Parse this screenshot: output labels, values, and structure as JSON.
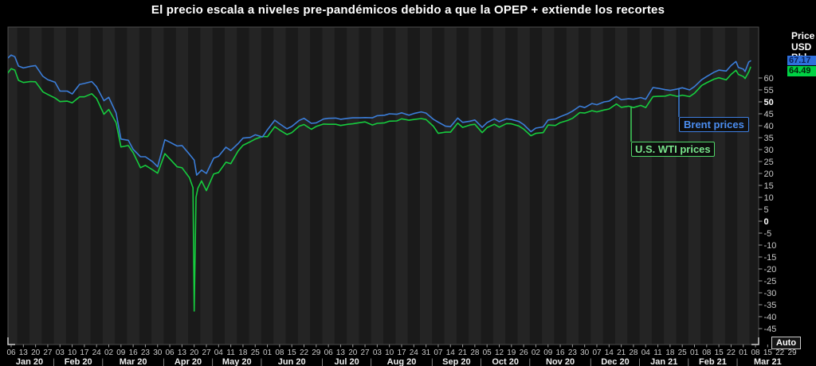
{
  "title": "El precio escala a niveles pre-pandémicos debido a que la OPEP + extiende los recortes",
  "right_column": {
    "unit_lines": [
      "Price",
      "USD",
      "Bbl"
    ],
    "auto_button": "Auto",
    "badges": {
      "brent": {
        "value": "67.17",
        "bg": "#2e6fdc",
        "fg": "#09225c"
      },
      "wti": {
        "value": "64.49",
        "bg": "#00d244",
        "fg": "#02220c"
      }
    }
  },
  "legend": {
    "brent": "Brent prices",
    "wti": "U.S. WTI prices"
  },
  "colors": {
    "background": "#000000",
    "plot_bg": "#1a1a1a",
    "plot_stripe": "#242424",
    "plot_border": "#4d4d4d",
    "corner_handle": "#cfcfcf",
    "tick_mark": "#9a9a9a",
    "tick_text": "#c9c9c9",
    "bold_tick_text": "#ffffff",
    "month_text": "#ededed",
    "brent": "#3b7dd8",
    "wti": "#16cc3e"
  },
  "chart_data": {
    "type": "line",
    "title": "El precio escala a niveles pre-pandémicos debido a que la OPEP + extiende los recortes",
    "ylabel": "Price USD/Bbl",
    "x_unit": "weeks since Mon 2020-01-06 (weekday daily closes)",
    "ylim": [
      -51,
      81
    ],
    "y_ticks": [
      60,
      55,
      50,
      45,
      40,
      35,
      30,
      25,
      20,
      15,
      10,
      5,
      0,
      -5,
      -10,
      -15,
      -20,
      -25,
      -30,
      -35,
      -40,
      -45
    ],
    "y_tick_step": 5,
    "y_ticks_bold": [
      50,
      0
    ],
    "grid": "alternating vertical weekly bands, no gridlines",
    "legend_position": "callout boxes inside plot, right side",
    "months": [
      {
        "label": "Jan 20",
        "days": [
          "06",
          "13",
          "20",
          "27"
        ]
      },
      {
        "label": "Feb 20",
        "days": [
          "03",
          "10",
          "17",
          "24"
        ]
      },
      {
        "label": "Mar 20",
        "days": [
          "02",
          "09",
          "16",
          "23",
          "30"
        ]
      },
      {
        "label": "Apr 20",
        "days": [
          "06",
          "13",
          "20",
          "27"
        ]
      },
      {
        "label": "May 20",
        "days": [
          "04",
          "11",
          "18",
          "25"
        ]
      },
      {
        "label": "Jun 20",
        "days": [
          "01",
          "08",
          "15",
          "22",
          "29"
        ]
      },
      {
        "label": "Jul 20",
        "days": [
          "06",
          "13",
          "20",
          "27"
        ]
      },
      {
        "label": "Aug 20",
        "days": [
          "03",
          "10",
          "17",
          "24",
          "31"
        ]
      },
      {
        "label": "Sep 20",
        "days": [
          "07",
          "14",
          "21",
          "28"
        ]
      },
      {
        "label": "Oct 20",
        "days": [
          "05",
          "12",
          "19",
          "26"
        ]
      },
      {
        "label": "Nov 20",
        "days": [
          "02",
          "09",
          "16",
          "23",
          "30"
        ]
      },
      {
        "label": "Dec 20",
        "days": [
          "07",
          "14",
          "21",
          "28"
        ]
      },
      {
        "label": "Jan 21",
        "days": [
          "04",
          "11",
          "18",
          "25"
        ]
      },
      {
        "label": "Feb 21",
        "days": [
          "01",
          "08",
          "15",
          "22"
        ]
      },
      {
        "label": "Mar 21",
        "days": [
          "01",
          "08",
          "15",
          "22",
          "29"
        ]
      }
    ],
    "series": [
      {
        "name": "Brent prices",
        "color": "#3b7dd8",
        "last_price": 67.17,
        "points": [
          [
            -0.3,
            68.2
          ],
          [
            0,
            69.6
          ],
          [
            0.3,
            68.9
          ],
          [
            0.6,
            65.0
          ],
          [
            1,
            64.2
          ],
          [
            1.6,
            64.9
          ],
          [
            2,
            65.2
          ],
          [
            2.6,
            60.7
          ],
          [
            3,
            59.3
          ],
          [
            3.6,
            58.2
          ],
          [
            4,
            54.5
          ],
          [
            4.6,
            54.5
          ],
          [
            5,
            53.3
          ],
          [
            5.6,
            57.3
          ],
          [
            6,
            57.7
          ],
          [
            6.6,
            58.5
          ],
          [
            7,
            56.3
          ],
          [
            7.6,
            50.5
          ],
          [
            8,
            51.9
          ],
          [
            8.6,
            45.3
          ],
          [
            9,
            34.4
          ],
          [
            9.6,
            33.9
          ],
          [
            10,
            30.1
          ],
          [
            10.6,
            27.0
          ],
          [
            11,
            27.0
          ],
          [
            11.6,
            24.9
          ],
          [
            12,
            22.8
          ],
          [
            12.6,
            34.1
          ],
          [
            13,
            33.1
          ],
          [
            13.6,
            31.5
          ],
          [
            14,
            31.7
          ],
          [
            14.6,
            28.1
          ],
          [
            15,
            25.6
          ],
          [
            15.2,
            19.3
          ],
          [
            15.6,
            21.4
          ],
          [
            16,
            20.0
          ],
          [
            16.6,
            26.4
          ],
          [
            17,
            27.2
          ],
          [
            17.6,
            31.0
          ],
          [
            18,
            29.6
          ],
          [
            18.6,
            32.5
          ],
          [
            19,
            34.8
          ],
          [
            19.6,
            35.1
          ],
          [
            20,
            36.2
          ],
          [
            20.6,
            35.3
          ],
          [
            21,
            38.3
          ],
          [
            21.6,
            42.3
          ],
          [
            22,
            40.8
          ],
          [
            22.6,
            38.7
          ],
          [
            23,
            39.7
          ],
          [
            23.6,
            42.2
          ],
          [
            24,
            43.1
          ],
          [
            24.6,
            41.0
          ],
          [
            25,
            41.2
          ],
          [
            25.6,
            42.8
          ],
          [
            26,
            43.1
          ],
          [
            26.6,
            43.2
          ],
          [
            27,
            42.7
          ],
          [
            27.6,
            43.1
          ],
          [
            28,
            43.3
          ],
          [
            28.6,
            43.3
          ],
          [
            29,
            43.4
          ],
          [
            29.6,
            43.3
          ],
          [
            30,
            44.2
          ],
          [
            30.6,
            44.4
          ],
          [
            31,
            45.0
          ],
          [
            31.6,
            44.8
          ],
          [
            32,
            45.4
          ],
          [
            32.6,
            44.4
          ],
          [
            33,
            45.1
          ],
          [
            33.6,
            45.8
          ],
          [
            34,
            45.3
          ],
          [
            34.6,
            42.7
          ],
          [
            35,
            41.5
          ],
          [
            35.6,
            39.8
          ],
          [
            36,
            39.6
          ],
          [
            36.6,
            43.2
          ],
          [
            37,
            41.4
          ],
          [
            37.6,
            41.9
          ],
          [
            38,
            42.4
          ],
          [
            38.6,
            39.3
          ],
          [
            39,
            41.3
          ],
          [
            39.6,
            42.9
          ],
          [
            40,
            41.7
          ],
          [
            40.6,
            42.9
          ],
          [
            41,
            42.6
          ],
          [
            41.6,
            41.8
          ],
          [
            42,
            40.5
          ],
          [
            42.6,
            37.5
          ],
          [
            43,
            39.0
          ],
          [
            43.6,
            39.5
          ],
          [
            44,
            42.4
          ],
          [
            44.6,
            42.8
          ],
          [
            45,
            43.8
          ],
          [
            45.6,
            45.0
          ],
          [
            46,
            46.1
          ],
          [
            46.6,
            48.2
          ],
          [
            47,
            47.6
          ],
          [
            47.6,
            49.3
          ],
          [
            48,
            48.8
          ],
          [
            48.6,
            50.0
          ],
          [
            49,
            50.3
          ],
          [
            49.6,
            52.3
          ],
          [
            50,
            50.9
          ],
          [
            50.6,
            51.3
          ],
          [
            51,
            51.1
          ],
          [
            51.6,
            51.8
          ],
          [
            52,
            51.1
          ],
          [
            52.6,
            56.0
          ],
          [
            53,
            55.7
          ],
          [
            53.6,
            55.1
          ],
          [
            54,
            54.8
          ],
          [
            54.6,
            55.4
          ],
          [
            55,
            55.9
          ],
          [
            55.6,
            55.0
          ],
          [
            56,
            56.4
          ],
          [
            56.6,
            59.3
          ],
          [
            57,
            60.6
          ],
          [
            57.6,
            62.4
          ],
          [
            58,
            63.3
          ],
          [
            58.6,
            62.9
          ],
          [
            59,
            65.2
          ],
          [
            59.4,
            66.9
          ],
          [
            59.6,
            64.4
          ],
          [
            60,
            63.7
          ],
          [
            60.15,
            62.7
          ],
          [
            60.45,
            66.7
          ],
          [
            60.6,
            67.17
          ]
        ]
      },
      {
        "name": "U.S. WTI prices",
        "color": "#16cc3e",
        "last_price": 64.49,
        "points": [
          [
            -0.3,
            61.9
          ],
          [
            0,
            63.9
          ],
          [
            0.3,
            63.3
          ],
          [
            0.6,
            59.0
          ],
          [
            1,
            58.1
          ],
          [
            1.6,
            58.5
          ],
          [
            2,
            58.4
          ],
          [
            2.6,
            54.2
          ],
          [
            3,
            53.1
          ],
          [
            3.6,
            51.6
          ],
          [
            4,
            50.1
          ],
          [
            4.6,
            50.3
          ],
          [
            5,
            49.6
          ],
          [
            5.6,
            52.1
          ],
          [
            6,
            52.1
          ],
          [
            6.6,
            53.4
          ],
          [
            7,
            51.4
          ],
          [
            7.6,
            44.8
          ],
          [
            8,
            46.8
          ],
          [
            8.6,
            41.3
          ],
          [
            9,
            31.1
          ],
          [
            9.6,
            31.7
          ],
          [
            10,
            28.7
          ],
          [
            10.6,
            22.4
          ],
          [
            11,
            23.4
          ],
          [
            11.6,
            21.5
          ],
          [
            12,
            20.1
          ],
          [
            12.6,
            28.3
          ],
          [
            13,
            26.1
          ],
          [
            13.6,
            22.8
          ],
          [
            14,
            22.4
          ],
          [
            14.6,
            18.3
          ],
          [
            14.9,
            14.0
          ],
          [
            15,
            -37.63
          ],
          [
            15.15,
            10.0
          ],
          [
            15.3,
            13.8
          ],
          [
            15.6,
            16.9
          ],
          [
            16,
            12.8
          ],
          [
            16.6,
            19.8
          ],
          [
            17,
            20.4
          ],
          [
            17.6,
            24.7
          ],
          [
            18,
            24.1
          ],
          [
            18.6,
            29.4
          ],
          [
            19,
            31.8
          ],
          [
            19.6,
            33.3
          ],
          [
            20,
            34.4
          ],
          [
            20.6,
            35.5
          ],
          [
            21,
            35.4
          ],
          [
            21.6,
            39.6
          ],
          [
            22,
            38.2
          ],
          [
            22.6,
            36.3
          ],
          [
            23,
            37.1
          ],
          [
            23.6,
            39.8
          ],
          [
            24,
            40.5
          ],
          [
            24.6,
            38.5
          ],
          [
            25,
            39.7
          ],
          [
            25.6,
            40.7
          ],
          [
            26,
            40.6
          ],
          [
            26.6,
            40.6
          ],
          [
            27,
            40.1
          ],
          [
            27.6,
            40.6
          ],
          [
            28,
            40.8
          ],
          [
            28.6,
            41.3
          ],
          [
            29,
            41.6
          ],
          [
            29.6,
            40.3
          ],
          [
            30,
            41.0
          ],
          [
            30.6,
            41.2
          ],
          [
            31,
            41.9
          ],
          [
            31.6,
            42.0
          ],
          [
            32,
            42.9
          ],
          [
            32.6,
            42.3
          ],
          [
            33,
            42.6
          ],
          [
            33.6,
            43.0
          ],
          [
            34,
            42.6
          ],
          [
            34.6,
            39.8
          ],
          [
            35,
            36.8
          ],
          [
            35.6,
            37.3
          ],
          [
            36,
            37.3
          ],
          [
            36.6,
            41.1
          ],
          [
            37,
            39.3
          ],
          [
            37.6,
            40.3
          ],
          [
            38,
            40.6
          ],
          [
            38.6,
            37.1
          ],
          [
            39,
            39.2
          ],
          [
            39.6,
            40.6
          ],
          [
            40,
            39.4
          ],
          [
            40.6,
            40.9
          ],
          [
            41,
            40.8
          ],
          [
            41.6,
            39.9
          ],
          [
            42,
            38.6
          ],
          [
            42.6,
            35.8
          ],
          [
            43,
            36.8
          ],
          [
            43.6,
            37.1
          ],
          [
            44,
            40.3
          ],
          [
            44.6,
            40.1
          ],
          [
            45,
            41.3
          ],
          [
            45.6,
            42.2
          ],
          [
            46,
            43.1
          ],
          [
            46.6,
            45.5
          ],
          [
            47,
            45.3
          ],
          [
            47.6,
            46.3
          ],
          [
            48,
            45.8
          ],
          [
            48.6,
            46.6
          ],
          [
            49,
            47.0
          ],
          [
            49.6,
            49.1
          ],
          [
            50,
            47.7
          ],
          [
            50.6,
            48.2
          ],
          [
            51,
            47.6
          ],
          [
            51.6,
            48.5
          ],
          [
            52,
            47.6
          ],
          [
            52.6,
            52.2
          ],
          [
            53,
            52.3
          ],
          [
            53.6,
            52.4
          ],
          [
            54,
            53.0
          ],
          [
            54.6,
            52.3
          ],
          [
            55,
            52.8
          ],
          [
            55.6,
            52.2
          ],
          [
            56,
            53.6
          ],
          [
            56.6,
            56.9
          ],
          [
            57,
            58.0
          ],
          [
            57.6,
            59.5
          ],
          [
            58,
            60.1
          ],
          [
            58.6,
            59.2
          ],
          [
            59,
            61.5
          ],
          [
            59.4,
            63.2
          ],
          [
            59.6,
            61.5
          ],
          [
            60,
            60.6
          ],
          [
            60.15,
            59.8
          ],
          [
            60.45,
            62.5
          ],
          [
            60.6,
            64.49
          ]
        ]
      }
    ]
  }
}
